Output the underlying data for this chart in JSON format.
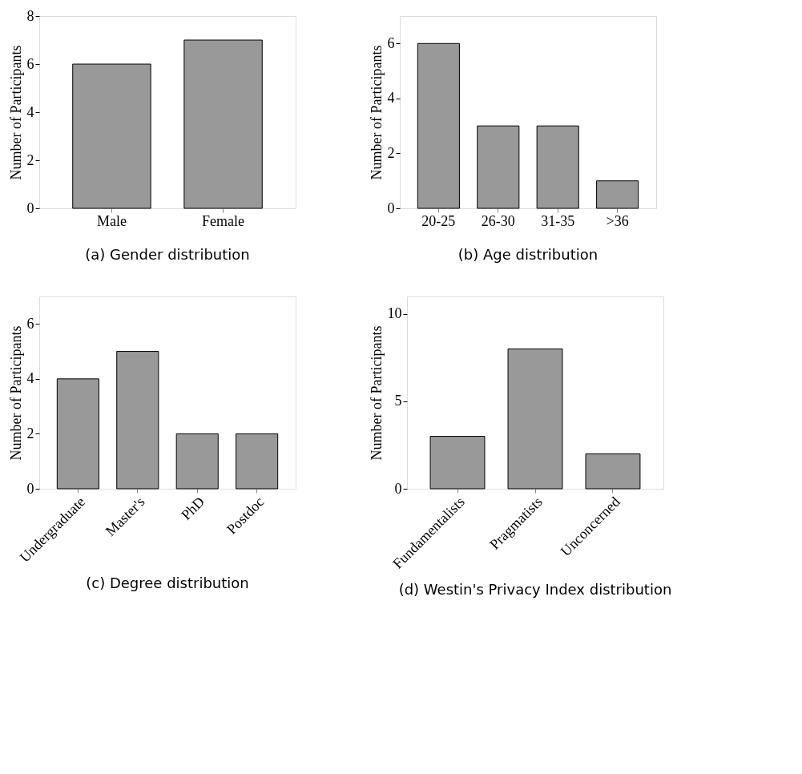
{
  "chart_data": [
    {
      "type": "bar",
      "title": "(a) Gender distribution",
      "ylabel": "Number of Participants",
      "categories": [
        "Male",
        "Female"
      ],
      "values": [
        6,
        7
      ],
      "color": "#999999",
      "ylim": [
        0,
        8
      ],
      "yticks": [
        0,
        2,
        4,
        6,
        8
      ],
      "grid": false
    },
    {
      "type": "bar",
      "title": "(b) Age distribution",
      "ylabel": "Number of Participants",
      "categories": [
        "20-25",
        "26-30",
        "31-35",
        ">36"
      ],
      "values": [
        6,
        3,
        3,
        1
      ],
      "color": "#999999",
      "ylim": [
        0,
        7
      ],
      "yticks": [
        0,
        2,
        4,
        6
      ],
      "grid": false
    },
    {
      "type": "bar",
      "title": "(c) Degree distribution",
      "ylabel": "Number of Participants",
      "categories": [
        "Undergraduate",
        "Master's",
        "PhD",
        "Postdoc"
      ],
      "values": [
        4,
        5,
        2,
        2
      ],
      "color": "#999999",
      "ylim": [
        0,
        7
      ],
      "yticks": [
        0,
        2,
        4,
        6
      ],
      "grid": false
    },
    {
      "type": "bar",
      "title": "(d) Westin's Privacy Index distribution",
      "ylabel": "Number of Participants",
      "categories": [
        "Fundamentalists",
        "Pragmatists",
        "Unconcerned"
      ],
      "values": [
        3,
        8,
        2
      ],
      "color": "#999999",
      "ylim": [
        0,
        11
      ],
      "yticks": [
        0,
        5,
        10
      ],
      "grid": false
    }
  ]
}
